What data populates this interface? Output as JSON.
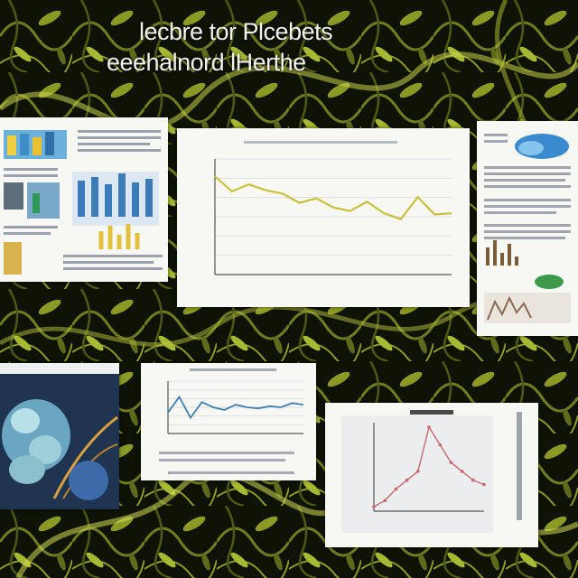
{
  "title": {
    "line1": "lecbre tor Plcebets",
    "line2": "eeehalnord lHerthe"
  },
  "colors": {
    "background": "#0e1306",
    "foliage": "#b6c33a",
    "line_yellow": "#c9c13a",
    "line_blue": "#3f7fb0",
    "line_red": "#c86a6a"
  },
  "chart_data": [
    {
      "type": "line",
      "series": [
        {
          "values": [
            0.85,
            0.72,
            0.78,
            0.73,
            0.7,
            0.62,
            0.66,
            0.58,
            0.55,
            0.63,
            0.53,
            0.48,
            0.67,
            0.52,
            0.53
          ]
        }
      ],
      "ylim": [
        0,
        1
      ],
      "grid": true
    },
    {
      "type": "line",
      "series": [
        {
          "values": [
            0.4,
            0.7,
            0.3,
            0.6,
            0.5,
            0.45,
            0.55,
            0.5,
            0.48,
            0.52,
            0.5,
            0.58,
            0.55
          ]
        }
      ],
      "ylim": [
        0,
        1
      ],
      "grid": true
    },
    {
      "type": "line",
      "series": [
        {
          "values": [
            0.05,
            0.12,
            0.25,
            0.35,
            0.45,
            0.95,
            0.75,
            0.55,
            0.45,
            0.35,
            0.3
          ]
        }
      ],
      "ylim": [
        0,
        1
      ],
      "grid": false
    }
  ]
}
